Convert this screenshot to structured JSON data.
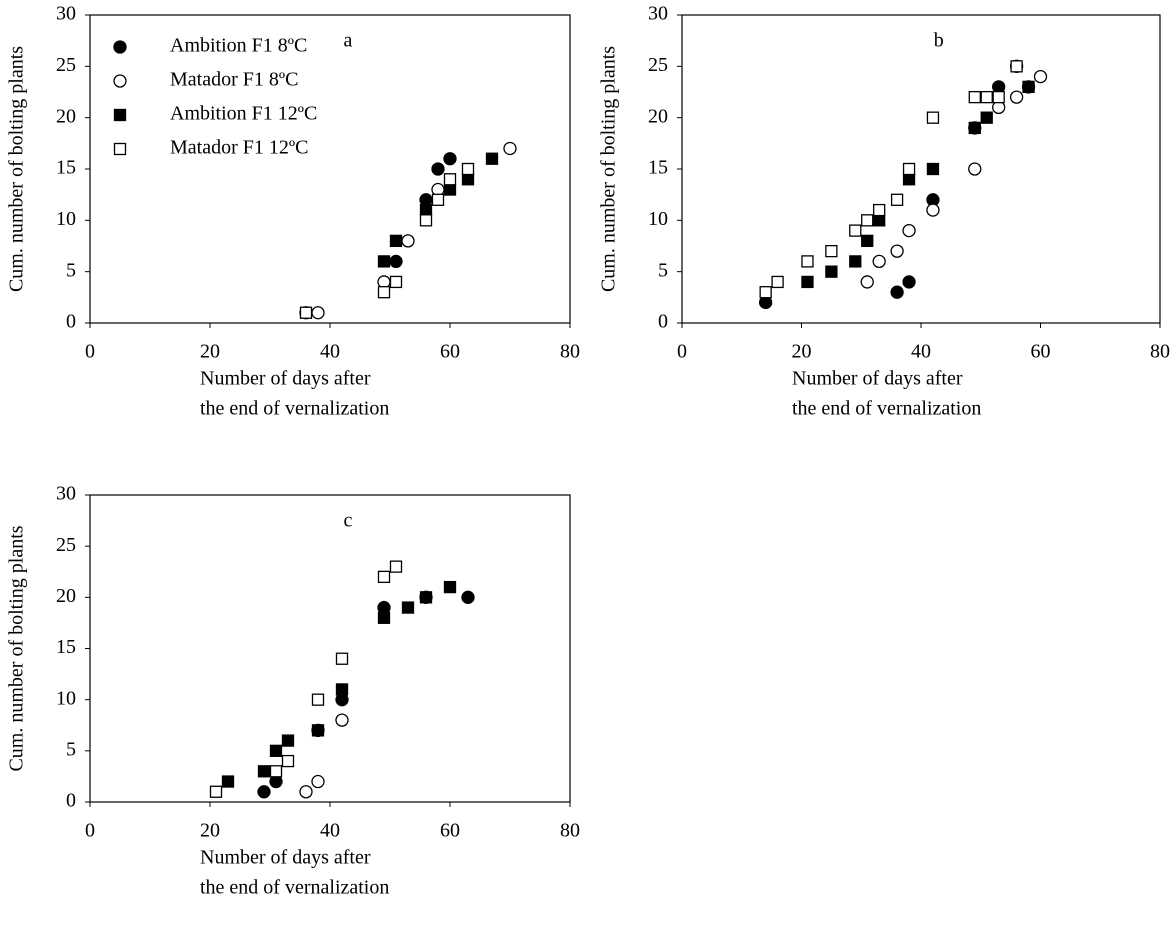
{
  "chart_data": [
    {
      "type": "scatter",
      "title": "a",
      "ylabel": "Cum. number of bolting plants",
      "xlabel": [
        "Number of days after",
        "the end of vernalization"
      ],
      "xlim": [
        0,
        80
      ],
      "xticks": [
        0,
        20,
        40,
        60,
        80
      ],
      "ylim": [
        0,
        30
      ],
      "yticks": [
        0,
        5,
        10,
        15,
        20,
        25,
        30
      ],
      "legend": "upper left",
      "series": [
        {
          "name": "Ambition F1 8ºC",
          "marker": "circle",
          "filled": true,
          "color": "#000000",
          "x": [
            36,
            51,
            56,
            58,
            60
          ],
          "values": [
            1,
            6,
            12,
            15,
            16
          ]
        },
        {
          "name": "Matador F1 8ºC",
          "marker": "circle",
          "filled": false,
          "color": "#000000",
          "x": [
            38,
            49,
            53,
            58,
            70
          ],
          "values": [
            1,
            4,
            8,
            13,
            17
          ]
        },
        {
          "name": "Ambition F1 12ºC",
          "marker": "square",
          "filled": true,
          "color": "#000000",
          "x": [
            49,
            51,
            56,
            60,
            63,
            67
          ],
          "values": [
            6,
            8,
            11,
            13,
            14,
            16
          ]
        },
        {
          "name": "Matador F1 12ºC",
          "marker": "square",
          "filled": false,
          "color": "#000000",
          "x": [
            36,
            49,
            51,
            56,
            58,
            60,
            63
          ],
          "values": [
            1,
            3,
            4,
            10,
            12,
            14,
            15
          ]
        }
      ]
    },
    {
      "type": "scatter",
      "title": "b",
      "ylabel": "Cum. number of bolting plants",
      "xlabel": [
        "Number of days after",
        "the end of vernalization"
      ],
      "xlim": [
        0,
        80
      ],
      "xticks": [
        0,
        20,
        40,
        60,
        80
      ],
      "ylim": [
        0,
        30
      ],
      "yticks": [
        0,
        5,
        10,
        15,
        20,
        25,
        30
      ],
      "series": [
        {
          "marker": "circle",
          "filled": true,
          "color": "#000000",
          "x": [
            14,
            36,
            38,
            42,
            49,
            53,
            56,
            58
          ],
          "values": [
            2,
            3,
            4,
            12,
            19,
            23,
            25,
            23
          ]
        },
        {
          "marker": "circle",
          "filled": false,
          "color": "#000000",
          "x": [
            31,
            33,
            36,
            38,
            42,
            49,
            53,
            56,
            60
          ],
          "values": [
            4,
            6,
            7,
            9,
            11,
            15,
            21,
            22,
            24
          ]
        },
        {
          "marker": "square",
          "filled": true,
          "color": "#000000",
          "x": [
            21,
            25,
            29,
            31,
            33,
            38,
            42,
            49,
            51,
            58
          ],
          "values": [
            4,
            5,
            6,
            8,
            10,
            14,
            15,
            19,
            20,
            23
          ]
        },
        {
          "marker": "square",
          "filled": false,
          "color": "#000000",
          "x": [
            14,
            16,
            21,
            25,
            29,
            31,
            33,
            36,
            38,
            42,
            49,
            51,
            53,
            56
          ],
          "values": [
            3,
            4,
            6,
            7,
            9,
            10,
            11,
            12,
            15,
            20,
            22,
            22,
            22,
            25
          ]
        }
      ]
    },
    {
      "type": "scatter",
      "title": "c",
      "ylabel": "Cum. number of bolting plants",
      "xlabel": [
        "Number of days after",
        "the end of vernalization"
      ],
      "xlim": [
        0,
        80
      ],
      "xticks": [
        0,
        20,
        40,
        60,
        80
      ],
      "ylim": [
        0,
        30
      ],
      "yticks": [
        0,
        5,
        10,
        15,
        20,
        25,
        30
      ],
      "series": [
        {
          "marker": "circle",
          "filled": true,
          "color": "#000000",
          "x": [
            29,
            31,
            38,
            42,
            49,
            56,
            63
          ],
          "values": [
            1,
            2,
            7,
            10,
            19,
            20,
            20
          ]
        },
        {
          "marker": "circle",
          "filled": false,
          "color": "#000000",
          "x": [
            36,
            38,
            42
          ],
          "values": [
            1,
            2,
            8
          ]
        },
        {
          "marker": "square",
          "filled": true,
          "color": "#000000",
          "x": [
            23,
            29,
            31,
            33,
            38,
            42,
            49,
            53,
            56,
            60
          ],
          "values": [
            2,
            3,
            5,
            6,
            7,
            11,
            18,
            19,
            20,
            21
          ]
        },
        {
          "marker": "square",
          "filled": false,
          "color": "#000000",
          "x": [
            21,
            31,
            33,
            38,
            42,
            49,
            51
          ],
          "values": [
            1,
            3,
            4,
            10,
            14,
            22,
            23
          ]
        }
      ]
    }
  ]
}
